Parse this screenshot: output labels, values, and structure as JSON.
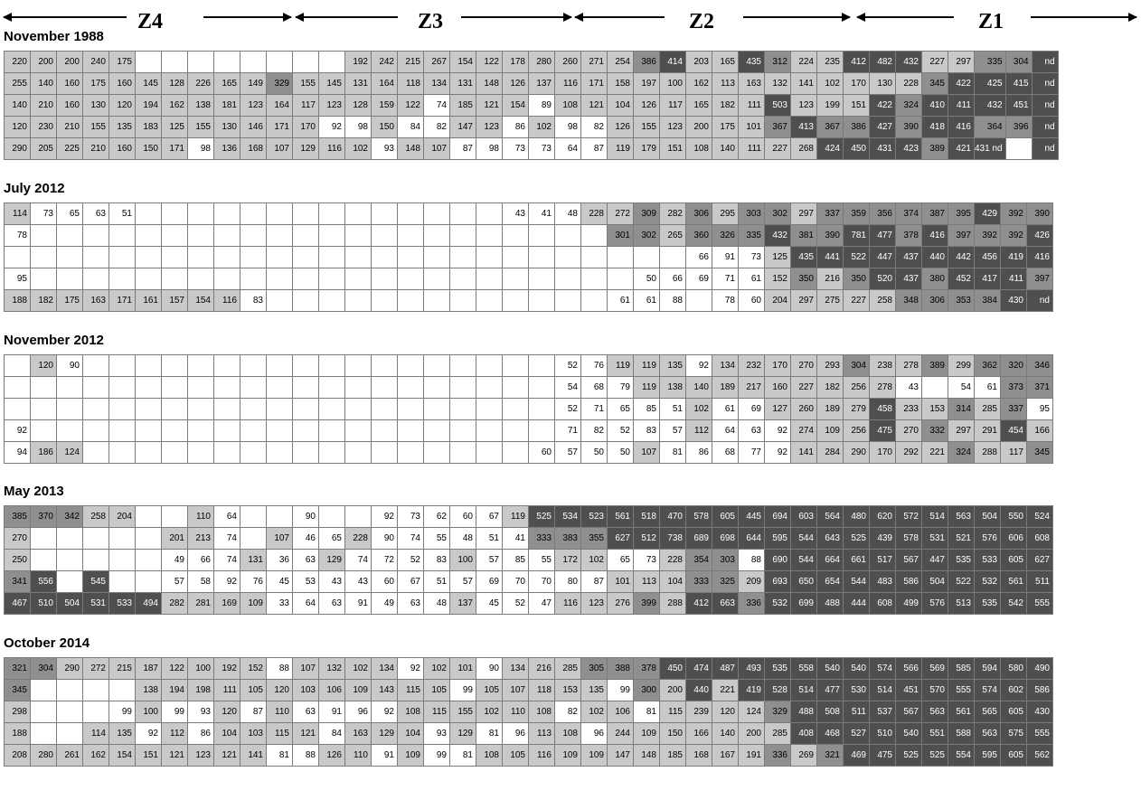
{
  "zones": [
    "Z4",
    "Z3",
    "Z2",
    "Z1"
  ],
  "sections": [
    {
      "title": "November 1988",
      "rows": [
        [
          "220",
          "200",
          "200",
          "240",
          "175",
          "",
          "",
          "",
          "",
          "",
          "",
          "",
          "",
          "192",
          "242",
          "215",
          "267",
          "154",
          "122",
          "178",
          "280",
          "260",
          "271",
          "254",
          "386",
          "414",
          "203",
          "165",
          "435",
          "312",
          "224",
          "235",
          "412",
          "482",
          "432",
          "227",
          "297",
          "335",
          "304",
          "nd"
        ],
        [
          "255",
          "140",
          "160",
          "175",
          "160",
          "145",
          "128",
          "226",
          "165",
          "149",
          "329",
          "155",
          "145",
          "131",
          "164",
          "118",
          "134",
          "131",
          "148",
          "126",
          "137",
          "116",
          "171",
          "158",
          "197",
          "100",
          "162",
          "113",
          "163",
          "132",
          "141",
          "102",
          "170",
          "130",
          "228",
          "345",
          "422",
          "425",
          "415",
          "nd"
        ],
        [
          "140",
          "210",
          "160",
          "130",
          "120",
          "194",
          "162",
          "138",
          "181",
          "123",
          "164",
          "117",
          "123",
          "128",
          "159",
          "122",
          "74",
          "185",
          "121",
          "154",
          "89",
          "108",
          "121",
          "104",
          "126",
          "117",
          "165",
          "182",
          "111",
          "503",
          "123",
          "199",
          "151",
          "422",
          "324",
          "410",
          "411",
          "432",
          "451",
          "nd"
        ],
        [
          "120",
          "230",
          "210",
          "155",
          "135",
          "183",
          "125",
          "155",
          "130",
          "146",
          "171",
          "170",
          "92",
          "98",
          "150",
          "84",
          "82",
          "147",
          "123",
          "86",
          "102",
          "98",
          "82",
          "126",
          "155",
          "123",
          "200",
          "175",
          "101",
          "367",
          "413",
          "367",
          "386",
          "427",
          "390",
          "418",
          "416",
          "364",
          "396",
          "nd"
        ],
        [
          "290",
          "205",
          "225",
          "210",
          "160",
          "150",
          "171",
          "98",
          "136",
          "168",
          "107",
          "129",
          "116",
          "102",
          "93",
          "148",
          "107",
          "87",
          "98",
          "73",
          "73",
          "64",
          "87",
          "119",
          "179",
          "151",
          "108",
          "140",
          "111",
          "227",
          "268",
          "424",
          "450",
          "431",
          "423",
          "389",
          "421",
          "431 nd",
          "",
          "nd"
        ]
      ]
    },
    {
      "title": "July 2012",
      "rows": [
        [
          "114",
          "73",
          "65",
          "63",
          "51",
          "",
          "",
          "",
          "",
          "",
          "",
          "",
          "",
          "",
          "",
          "",
          "",
          "",
          "",
          "43",
          "41",
          "48",
          "228",
          "272",
          "309",
          "282",
          "306",
          "295",
          "303",
          "302",
          "297",
          "337",
          "359",
          "356",
          "374",
          "387",
          "395",
          "429",
          "392",
          "390"
        ],
        [
          "78",
          "",
          "",
          "",
          "",
          "",
          "",
          "",
          "",
          "",
          "",
          "",
          "",
          "",
          "",
          "",
          "",
          "",
          "",
          "",
          "",
          "",
          "",
          "301",
          "302",
          "265",
          "360",
          "326",
          "335",
          "432",
          "381",
          "390",
          "781",
          "477",
          "378",
          "416",
          "397",
          "392",
          "392",
          "426"
        ],
        [
          "",
          "",
          "",
          "",
          "",
          "",
          "",
          "",
          "",
          "",
          "",
          "",
          "",
          "",
          "",
          "",
          "",
          "",
          "",
          "",
          "",
          "",
          "",
          "",
          "",
          "",
          "66",
          "91",
          "73",
          "125",
          "435",
          "441",
          "522",
          "447",
          "437",
          "440",
          "442",
          "456",
          "419",
          "416"
        ],
        [
          "95",
          "",
          "",
          "",
          "",
          "",
          "",
          "",
          "",
          "",
          "",
          "",
          "",
          "",
          "",
          "",
          "",
          "",
          "",
          "",
          "",
          "",
          "",
          "",
          "50",
          "66",
          "69",
          "71",
          "61",
          "152",
          "350",
          "216",
          "350",
          "520",
          "437",
          "380",
          "452",
          "417",
          "411",
          "397"
        ],
        [
          "188",
          "182",
          "175",
          "163",
          "171",
          "161",
          "157",
          "154",
          "116",
          "83",
          "",
          "",
          "",
          "",
          "",
          "",
          "",
          "",
          "",
          "",
          "",
          "",
          "",
          "61",
          "61",
          "88",
          "",
          "78",
          "60",
          "204",
          "297",
          "275",
          "227",
          "258",
          "348",
          "306",
          "353",
          "384",
          "430",
          "nd"
        ]
      ]
    },
    {
      "title": "November 2012",
      "rows": [
        [
          "",
          "120",
          "90",
          "",
          "",
          "",
          "",
          "",
          "",
          "",
          "",
          "",
          "",
          "",
          "",
          "",
          "",
          "",
          "",
          "",
          "",
          "52",
          "76",
          "119",
          "119",
          "135",
          "92",
          "134",
          "232",
          "170",
          "270",
          "293",
          "304",
          "238",
          "278",
          "389",
          "299",
          "362",
          "320",
          "346"
        ],
        [
          "",
          "",
          "",
          "",
          "",
          "",
          "",
          "",
          "",
          "",
          "",
          "",
          "",
          "",
          "",
          "",
          "",
          "",
          "",
          "",
          "",
          "54",
          "68",
          "79",
          "119",
          "138",
          "140",
          "189",
          "217",
          "160",
          "227",
          "182",
          "256",
          "278",
          "43",
          "",
          "54",
          "61",
          "373",
          "371"
        ],
        [
          "",
          "",
          "",
          "",
          "",
          "",
          "",
          "",
          "",
          "",
          "",
          "",
          "",
          "",
          "",
          "",
          "",
          "",
          "",
          "",
          "",
          "52",
          "71",
          "65",
          "85",
          "51",
          "102",
          "61",
          "69",
          "127",
          "260",
          "189",
          "279",
          "458",
          "233",
          "153",
          "314",
          "285",
          "337",
          "95"
        ],
        [
          "92",
          "",
          "",
          "",
          "",
          "",
          "",
          "",
          "",
          "",
          "",
          "",
          "",
          "",
          "",
          "",
          "",
          "",
          "",
          "",
          "",
          "71",
          "82",
          "52",
          "83",
          "57",
          "112",
          "64",
          "63",
          "92",
          "274",
          "109",
          "256",
          "475",
          "270",
          "332",
          "297",
          "291",
          "454",
          "166"
        ],
        [
          "94",
          "186",
          "124",
          "",
          "",
          "",
          "",
          "",
          "",
          "",
          "",
          "",
          "",
          "",
          "",
          "",
          "",
          "",
          "",
          "",
          "60",
          "57",
          "50",
          "50",
          "107",
          "81",
          "86",
          "68",
          "77",
          "92",
          "141",
          "284",
          "290",
          "170",
          "292",
          "221",
          "324",
          "288",
          "117",
          "345"
        ]
      ]
    },
    {
      "title": "May 2013",
      "rows": [
        [
          "385",
          "370",
          "342",
          "258",
          "204",
          "",
          "",
          "110",
          "64",
          "",
          "",
          "90",
          "",
          "",
          "92",
          "73",
          "62",
          "60",
          "67",
          "119",
          "525",
          "534",
          "523",
          "561",
          "518",
          "470",
          "578",
          "605",
          "445",
          "694",
          "603",
          "564",
          "480",
          "620",
          "572",
          "514",
          "563",
          "504",
          "550",
          "524"
        ],
        [
          "270",
          "",
          "",
          "",
          "",
          "",
          "201",
          "213",
          "74",
          "",
          "107",
          "46",
          "65",
          "228",
          "90",
          "74",
          "55",
          "48",
          "51",
          "41",
          "333",
          "383",
          "355",
          "627",
          "512",
          "738",
          "689",
          "698",
          "644",
          "595",
          "544",
          "643",
          "525",
          "439",
          "578",
          "531",
          "521",
          "576",
          "606",
          "608"
        ],
        [
          "250",
          "",
          "",
          "",
          "",
          "",
          "49",
          "66",
          "74",
          "131",
          "36",
          "63",
          "129",
          "74",
          "72",
          "52",
          "83",
          "100",
          "57",
          "85",
          "55",
          "172",
          "102",
          "65",
          "73",
          "228",
          "354",
          "303",
          "88",
          "690",
          "544",
          "664",
          "661",
          "517",
          "567",
          "447",
          "535",
          "533",
          "605",
          "627"
        ],
        [
          "341",
          "556",
          "",
          "545",
          "",
          "",
          "57",
          "58",
          "92",
          "76",
          "45",
          "53",
          "43",
          "43",
          "60",
          "67",
          "51",
          "57",
          "69",
          "70",
          "70",
          "80",
          "87",
          "101",
          "113",
          "104",
          "333",
          "325",
          "209",
          "693",
          "650",
          "654",
          "544",
          "483",
          "586",
          "504",
          "522",
          "532",
          "561",
          "511"
        ],
        [
          "467",
          "510",
          "504",
          "531",
          "533",
          "494",
          "282",
          "281",
          "169",
          "109",
          "33",
          "64",
          "63",
          "91",
          "49",
          "63",
          "48",
          "137",
          "45",
          "52",
          "47",
          "116",
          "123",
          "276",
          "399",
          "288",
          "412",
          "663",
          "336",
          "532",
          "699",
          "488",
          "444",
          "608",
          "499",
          "576",
          "513",
          "535",
          "542",
          "555"
        ]
      ]
    },
    {
      "title": "October 2014",
      "rows": [
        [
          "321",
          "304",
          "290",
          "272",
          "215",
          "187",
          "122",
          "100",
          "192",
          "152",
          "88",
          "107",
          "132",
          "102",
          "134",
          "92",
          "102",
          "101",
          "90",
          "134",
          "216",
          "285",
          "305",
          "388",
          "378",
          "450",
          "474",
          "487",
          "493",
          "535",
          "558",
          "540",
          "540",
          "574",
          "566",
          "569",
          "585",
          "594",
          "580",
          "490"
        ],
        [
          "345",
          "",
          "",
          "",
          "",
          "138",
          "194",
          "198",
          "111",
          "105",
          "120",
          "103",
          "106",
          "109",
          "143",
          "115",
          "105",
          "99",
          "105",
          "107",
          "118",
          "153",
          "135",
          "99",
          "300",
          "200",
          "440",
          "221",
          "419",
          "528",
          "514",
          "477",
          "530",
          "514",
          "451",
          "570",
          "555",
          "574",
          "602",
          "586"
        ],
        [
          "298",
          "",
          "",
          "",
          "99",
          "100",
          "99",
          "93",
          "120",
          "87",
          "110",
          "63",
          "91",
          "96",
          "92",
          "108",
          "115",
          "155",
          "102",
          "110",
          "108",
          "82",
          "102",
          "106",
          "81",
          "115",
          "239",
          "120",
          "124",
          "329",
          "488",
          "508",
          "511",
          "537",
          "567",
          "563",
          "561",
          "565",
          "605",
          "430"
        ],
        [
          "188",
          "",
          "",
          "114",
          "135",
          "92",
          "112",
          "86",
          "104",
          "103",
          "115",
          "121",
          "84",
          "163",
          "129",
          "104",
          "93",
          "129",
          "81",
          "96",
          "113",
          "108",
          "96",
          "244",
          "109",
          "150",
          "166",
          "140",
          "200",
          "285",
          "408",
          "468",
          "527",
          "510",
          "540",
          "551",
          "588",
          "563",
          "575",
          "555"
        ],
        [
          "208",
          "280",
          "261",
          "162",
          "154",
          "151",
          "121",
          "123",
          "121",
          "141",
          "81",
          "88",
          "126",
          "110",
          "91",
          "109",
          "99",
          "81",
          "108",
          "105",
          "116",
          "109",
          "109",
          "147",
          "148",
          "185",
          "168",
          "167",
          "191",
          "336",
          "269",
          "321",
          "469",
          "475",
          "525",
          "525",
          "554",
          "595",
          "605",
          "562"
        ]
      ]
    }
  ]
}
